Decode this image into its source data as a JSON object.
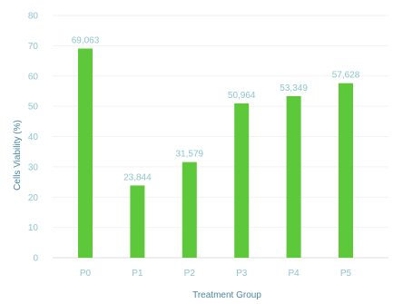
{
  "chart_data": {
    "type": "bar",
    "categories": [
      "P0",
      "P1",
      "P2",
      "P3",
      "P4",
      "P5"
    ],
    "values": [
      69.063,
      23.844,
      31.579,
      50.964,
      53.349,
      57.628
    ],
    "value_labels": [
      "69,063",
      "23,844",
      "31,579",
      "50,964",
      "53,349",
      "57,628"
    ],
    "yticks": [
      "0",
      "10",
      "20",
      "30",
      "40",
      "50",
      "60",
      "70",
      "80"
    ],
    "ylim": [
      0,
      80
    ],
    "xlabel": "Treatment Group",
    "ylabel": "Cells Viability (%)",
    "grid": true,
    "bar_color": "#5cc83a",
    "label_color": "#8ec5cf",
    "axis_title_color": "#4a86a0"
  }
}
